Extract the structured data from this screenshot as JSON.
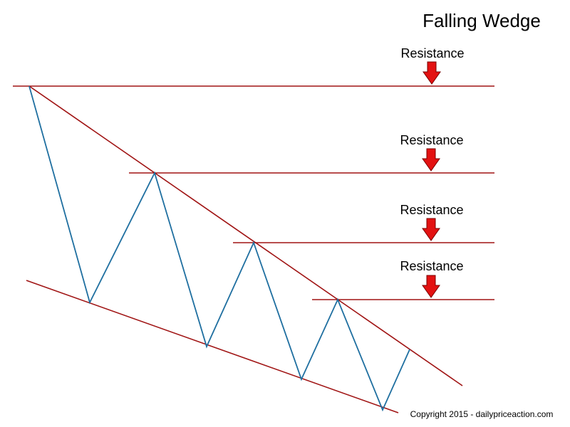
{
  "title": "Falling Wedge",
  "resistance_labels": [
    "Resistance",
    "Resistance",
    "Resistance",
    "Resistance"
  ],
  "copyright": "Copyright 2015 - dailypriceaction.com",
  "colors": {
    "price_line": "#1f6fa0",
    "trend_line": "#a01414",
    "arrow_fill": "#e31212",
    "arrow_stroke": "#7a0000"
  },
  "icons": [
    "down-arrow-icon"
  ]
}
